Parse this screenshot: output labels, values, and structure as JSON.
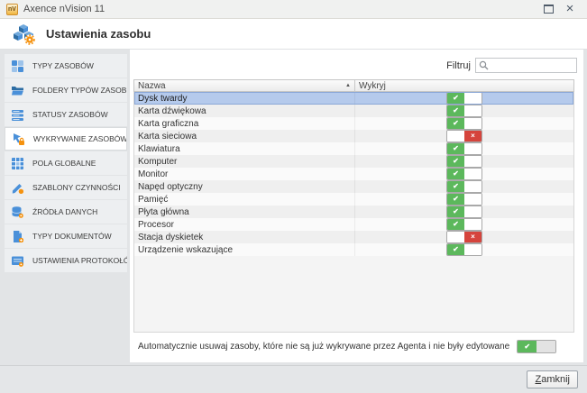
{
  "window": {
    "title": "Axence nVision 11",
    "controls": {
      "maximize_icon": "maximize-icon",
      "close_icon": "close-icon",
      "close_glyph": "×"
    }
  },
  "header": {
    "title": "Ustawienia zasobu",
    "icon": "cubes-gear-icon"
  },
  "sidebar": {
    "items": [
      {
        "id": "typy-zasobow",
        "label": "TYPY ZASOBÓW",
        "icon": "grid-icon",
        "selected": false
      },
      {
        "id": "foldery-typow-zasobow",
        "label": "FOLDERY TYPÓW ZASOB...",
        "icon": "folder-icon",
        "selected": false
      },
      {
        "id": "statusy-zasobow",
        "label": "STATUSY ZASOBÓW",
        "icon": "list-icon",
        "selected": false
      },
      {
        "id": "wykrywanie-zasobow",
        "label": "WYKRYWANIE ZASOBÓW",
        "icon": "detect-icon",
        "selected": true
      },
      {
        "id": "pola-globalne",
        "label": "POLA GLOBALNE",
        "icon": "fields-icon",
        "selected": false
      },
      {
        "id": "szablony-czynnosci",
        "label": "SZABLONY CZYNNOŚCI",
        "icon": "template-icon",
        "selected": false
      },
      {
        "id": "zrodla-danych",
        "label": "ŹRÓDŁA DANYCH",
        "icon": "database-icon",
        "selected": false
      },
      {
        "id": "typy-dokumentow",
        "label": "TYPY DOKUMENTÓW",
        "icon": "document-icon",
        "selected": false
      },
      {
        "id": "ustawienia-protokolow",
        "label": "USTAWIENIA PROTOKOŁÓW",
        "icon": "protocol-icon",
        "selected": false
      }
    ]
  },
  "filter": {
    "label": "Filtruj",
    "value": "",
    "icon": "search-icon"
  },
  "table": {
    "columns": [
      {
        "label": "Nazwa",
        "sorted": "asc"
      },
      {
        "label": "Wykryj"
      }
    ],
    "rows": [
      {
        "name": "Dysk twardy",
        "detect": true,
        "selected": true
      },
      {
        "name": "Karta dźwiękowa",
        "detect": true,
        "selected": false
      },
      {
        "name": "Karta graficzna",
        "detect": true,
        "selected": false
      },
      {
        "name": "Karta sieciowa",
        "detect": false,
        "selected": false
      },
      {
        "name": "Klawiatura",
        "detect": true,
        "selected": false
      },
      {
        "name": "Komputer",
        "detect": true,
        "selected": false
      },
      {
        "name": "Monitor",
        "detect": true,
        "selected": false
      },
      {
        "name": "Napęd optyczny",
        "detect": true,
        "selected": false
      },
      {
        "name": "Pamięć",
        "detect": true,
        "selected": false
      },
      {
        "name": "Płyta główna",
        "detect": true,
        "selected": false
      },
      {
        "name": "Procesor",
        "detect": true,
        "selected": false
      },
      {
        "name": "Stacja dyskietek",
        "detect": false,
        "selected": false
      },
      {
        "name": "Urządzenie wskazujące",
        "detect": true,
        "selected": false
      }
    ]
  },
  "auto_remove": {
    "label": "Automatycznie usuwaj zasoby, które nie są już wykrywane przez Agenta i nie były edytowane",
    "enabled": true
  },
  "footer": {
    "close_label": "Zamknij"
  },
  "glyphs": {
    "check": "✔",
    "cross": "×",
    "sort_asc": "▲"
  },
  "colors": {
    "toggle_on": "#5cb85c",
    "toggle_off": "#d5443c",
    "selected_row": "#b5caec",
    "icon_blue": "#4a90d9",
    "icon_orange": "#f5920f"
  }
}
